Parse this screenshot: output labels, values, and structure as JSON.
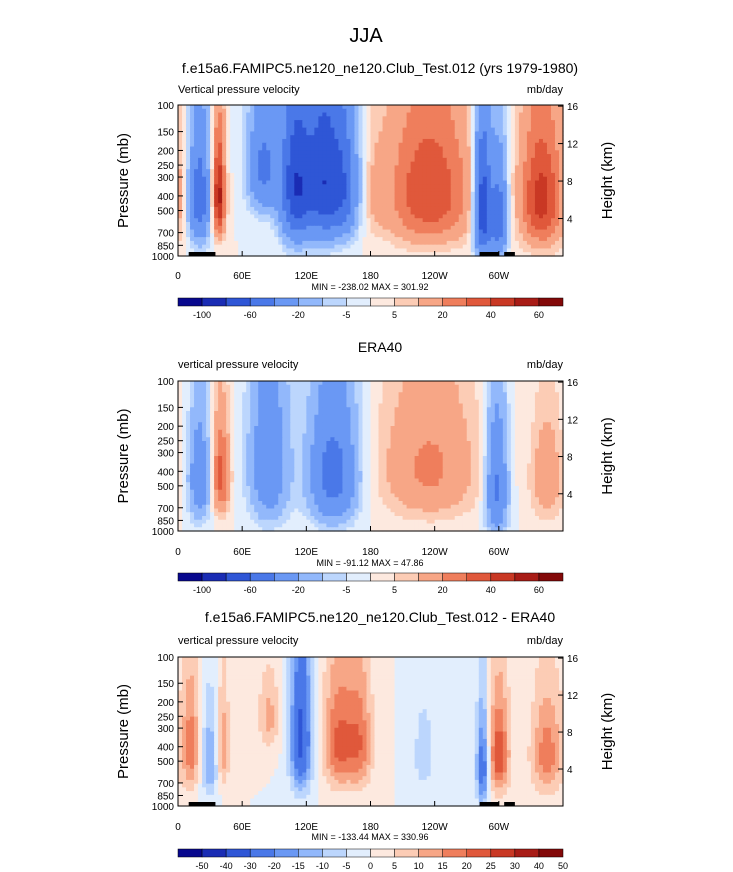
{
  "page_title": "JJA",
  "colors": {
    "cbar_main": [
      "#08088e",
      "#1a2cb4",
      "#2f56d6",
      "#4a78e8",
      "#6a98f4",
      "#92b8fb",
      "#bcd6fd",
      "#e2eefd",
      "#fde9df",
      "#fcccb5",
      "#f7a686",
      "#ef7e5c",
      "#e0583b",
      "#c93824",
      "#a81c16",
      "#830909"
    ],
    "cbar_diff": [
      "#08088e",
      "#1a2cb4",
      "#2f56d6",
      "#4a78e8",
      "#6a98f4",
      "#92b8fb",
      "#bcd6fd",
      "#e2eefd",
      "#fde9df",
      "#fcccb5",
      "#f7a686",
      "#ef7e5c",
      "#e0583b",
      "#c93824",
      "#a81c16",
      "#830909"
    ],
    "land": "#000000"
  },
  "chart_data": [
    {
      "type": "heatmap",
      "id": "model",
      "title": "f.e15a6.FAMIPC5.ne120_ne120.Club_Test.012 (yrs 1979-1980)",
      "subtitle_left": "Vertical pressure velocity",
      "subtitle_right": "mb/day",
      "ylabel": "Pressure (mb)",
      "ylabel_right": "Height (km)",
      "yticks": [
        100,
        150,
        200,
        250,
        300,
        400,
        500,
        700,
        850,
        1000
      ],
      "ylim": [
        100,
        1000
      ],
      "yticks_right": [
        16,
        12,
        8,
        4
      ],
      "xticks": [
        "0",
        "60E",
        "120E",
        "180",
        "120W",
        "60W"
      ],
      "xtick_values": [
        0,
        60,
        120,
        180,
        240,
        300
      ],
      "xlim": [
        0,
        360
      ],
      "stats": "MIN = -238.02  MAX = 301.92",
      "colorbar_labels": [
        "-100",
        "-60",
        "-20",
        "-5",
        "5",
        "20",
        "40",
        "60"
      ],
      "scale": 1.0,
      "anomalies": [
        {
          "lon": 20,
          "p": 420,
          "dlon": 10,
          "dp": 350,
          "v": -55
        },
        {
          "lon": 38,
          "p": 400,
          "dlon": 6,
          "dp": 300,
          "v": 55
        },
        {
          "lon": 80,
          "p": 260,
          "dlon": 14,
          "dp": 220,
          "v": -45
        },
        {
          "lon": 110,
          "p": 350,
          "dlon": 14,
          "dp": 400,
          "v": -75
        },
        {
          "lon": 135,
          "p": 320,
          "dlon": 16,
          "dp": 400,
          "v": -70
        },
        {
          "lon": 155,
          "p": 350,
          "dlon": 14,
          "dp": 350,
          "v": -50
        },
        {
          "lon": 185,
          "p": 400,
          "dlon": 10,
          "dp": 250,
          "v": 8
        },
        {
          "lon": 235,
          "p": 380,
          "dlon": 40,
          "dp": 400,
          "v": 40
        },
        {
          "lon": 285,
          "p": 480,
          "dlon": 8,
          "dp": 450,
          "v": -80
        },
        {
          "lon": 300,
          "p": 550,
          "dlon": 8,
          "dp": 400,
          "v": -55
        },
        {
          "lon": 340,
          "p": 420,
          "dlon": 20,
          "dp": 400,
          "v": 45
        }
      ],
      "land_segments": [
        [
          10,
          25
        ],
        [
          20,
          35
        ],
        [
          282,
          300
        ],
        [
          305,
          315
        ]
      ]
    },
    {
      "type": "heatmap",
      "id": "era40",
      "title": "ERA40",
      "subtitle_left": "vertical pressure velocity",
      "subtitle_right": "mb/day",
      "ylabel": "Pressure (mb)",
      "ylabel_right": "Height (km)",
      "yticks": [
        100,
        150,
        200,
        250,
        300,
        400,
        500,
        700,
        850,
        1000
      ],
      "ylim": [
        100,
        1000
      ],
      "yticks_right": [
        16,
        12,
        8,
        4
      ],
      "xticks": [
        "0",
        "60E",
        "120E",
        "180",
        "120W",
        "60W"
      ],
      "xtick_values": [
        0,
        60,
        120,
        180,
        240,
        300
      ],
      "xlim": [
        0,
        360
      ],
      "stats": "MIN = -91.12  MAX = 47.86",
      "colorbar_labels": [
        "-100",
        "-60",
        "-20",
        "-5",
        "5",
        "20",
        "40",
        "60"
      ],
      "scale": 1.0,
      "anomalies": [
        {
          "lon": 20,
          "p": 450,
          "dlon": 10,
          "dp": 350,
          "v": -35
        },
        {
          "lon": 40,
          "p": 430,
          "dlon": 8,
          "dp": 300,
          "v": 35
        },
        {
          "lon": 85,
          "p": 360,
          "dlon": 18,
          "dp": 450,
          "v": -35
        },
        {
          "lon": 145,
          "p": 420,
          "dlon": 22,
          "dp": 400,
          "v": -50
        },
        {
          "lon": 235,
          "p": 380,
          "dlon": 45,
          "dp": 400,
          "v": 22
        },
        {
          "lon": 298,
          "p": 520,
          "dlon": 10,
          "dp": 450,
          "v": -45
        },
        {
          "lon": 345,
          "p": 450,
          "dlon": 15,
          "dp": 350,
          "v": 18
        }
      ],
      "land_segments": []
    },
    {
      "type": "heatmap",
      "id": "diff",
      "title": "f.e15a6.FAMIPC5.ne120_ne120.Club_Test.012 - ERA40",
      "subtitle_left": "vertical pressure velocity",
      "subtitle_right": "mb/day",
      "ylabel": "Pressure (mb)",
      "ylabel_right": "Height (km)",
      "yticks": [
        100,
        150,
        200,
        250,
        300,
        400,
        500,
        700,
        850,
        1000
      ],
      "ylim": [
        100,
        1000
      ],
      "yticks_right": [
        16,
        12,
        8,
        4
      ],
      "xticks": [
        "0",
        "60E",
        "120E",
        "180",
        "120W",
        "60W"
      ],
      "xtick_values": [
        0,
        60,
        120,
        180,
        240,
        300
      ],
      "xlim": [
        0,
        360
      ],
      "stats": "MIN = -133.44  MAX = 330.96",
      "colorbar_labels": [
        "-50",
        "-40",
        "-30",
        "-20",
        "-15",
        "-10",
        "-5",
        "0",
        "5",
        "10",
        "15",
        "20",
        "25",
        "30",
        "40",
        "50"
      ],
      "scale": 0.6,
      "anomalies": [
        {
          "lon": 12,
          "p": 400,
          "dlon": 8,
          "dp": 350,
          "v": 30
        },
        {
          "lon": 30,
          "p": 500,
          "dlon": 8,
          "dp": 350,
          "v": -25
        },
        {
          "lon": 42,
          "p": 400,
          "dlon": 6,
          "dp": 300,
          "v": 25
        },
        {
          "lon": 85,
          "p": 250,
          "dlon": 10,
          "dp": 150,
          "v": 20
        },
        {
          "lon": 115,
          "p": 350,
          "dlon": 10,
          "dp": 400,
          "v": -55
        },
        {
          "lon": 150,
          "p": 380,
          "dlon": 14,
          "dp": 350,
          "v": 35
        },
        {
          "lon": 170,
          "p": 380,
          "dlon": 12,
          "dp": 350,
          "v": 30
        },
        {
          "lon": 230,
          "p": 450,
          "dlon": 10,
          "dp": 300,
          "v": -15
        },
        {
          "lon": 285,
          "p": 550,
          "dlon": 6,
          "dp": 400,
          "v": -45
        },
        {
          "lon": 300,
          "p": 450,
          "dlon": 10,
          "dp": 350,
          "v": 40
        },
        {
          "lon": 345,
          "p": 450,
          "dlon": 15,
          "dp": 350,
          "v": 30
        }
      ],
      "land_segments": [
        [
          10,
          25
        ],
        [
          20,
          35
        ],
        [
          282,
          300
        ],
        [
          305,
          315
        ]
      ]
    }
  ]
}
